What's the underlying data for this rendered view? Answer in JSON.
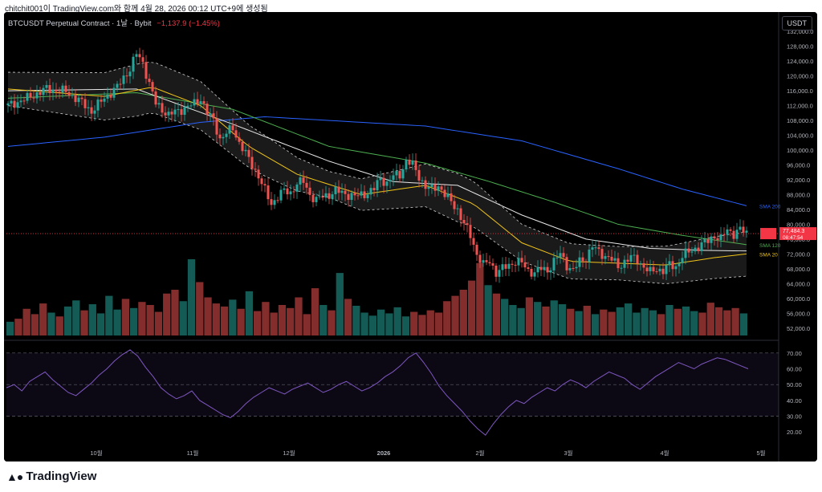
{
  "caption": "chitchit001이 TradingView.com와 함께 4월 28, 2026 00:12 UTC+9에 생성됨",
  "header": {
    "title": "BTCUSDT Perpetual Contract · 1날 · Bybit",
    "change": "−1,137.9 (−1.45%)",
    "currency_button": "USDT"
  },
  "footer": {
    "logo_text": "TradingView",
    "logo_icon": "tradingview-logo-icon"
  },
  "colors": {
    "up": "#26a69a",
    "down": "#ef5350",
    "sma200": "#2962ff",
    "sma120": "#4caf50",
    "sma60": "#e8e8e8",
    "sma20": "#f0c419",
    "rsi": "#7e57c2",
    "price_line": "#f23645"
  },
  "chart_data": [
    {
      "type": "candlestick",
      "x_tick_labels": [
        "10월",
        "11월",
        "12월",
        "2026",
        "2월",
        "3월",
        "4월",
        "5월"
      ],
      "y_tick_labels": [
        "132,000.0",
        "128,000.0",
        "124,000.0",
        "120,000.0",
        "116,000.0",
        "112,000.0",
        "108,000.0",
        "104,000.0",
        "100,000.0",
        "96,000.0",
        "92,000.0",
        "88,000.0",
        "84,000.0",
        "80,000.0",
        "76,000.0",
        "72,000.0",
        "68,000.0",
        "64,000.0",
        "60,000.0",
        "56,000.0",
        "52,000.0"
      ],
      "ylim": [
        50000,
        134000
      ],
      "price_path": [
        [
          0,
          112000
        ],
        [
          6,
          114000
        ],
        [
          12,
          116500
        ],
        [
          18,
          115800
        ],
        [
          22,
          113500
        ],
        [
          26,
          110500
        ],
        [
          30,
          114000
        ],
        [
          34,
          117000
        ],
        [
          38,
          122000
        ],
        [
          40,
          126000
        ],
        [
          42,
          123500
        ],
        [
          44,
          118000
        ],
        [
          46,
          112500
        ],
        [
          50,
          109500
        ],
        [
          54,
          111000
        ],
        [
          58,
          112500
        ],
        [
          60,
          114000
        ],
        [
          62,
          110000
        ],
        [
          64,
          108000
        ],
        [
          66,
          103000
        ],
        [
          68,
          104500
        ],
        [
          70,
          106000
        ],
        [
          72,
          102000
        ],
        [
          74,
          99000
        ],
        [
          76,
          96000
        ],
        [
          78,
          93000
        ],
        [
          80,
          89000
        ],
        [
          82,
          85500
        ],
        [
          84,
          87500
        ],
        [
          86,
          89000
        ],
        [
          88,
          88500
        ],
        [
          90,
          91000
        ],
        [
          92,
          91500
        ],
        [
          94,
          88000
        ],
        [
          96,
          86500
        ],
        [
          98,
          87500
        ],
        [
          100,
          88000
        ],
        [
          102,
          89000
        ],
        [
          104,
          88500
        ],
        [
          106,
          88000
        ],
        [
          108,
          87500
        ],
        [
          110,
          88000
        ],
        [
          112,
          88500
        ],
        [
          114,
          89500
        ],
        [
          116,
          92500
        ],
        [
          118,
          91000
        ],
        [
          120,
          93000
        ],
        [
          122,
          93500
        ],
        [
          124,
          97000
        ],
        [
          126,
          96000
        ],
        [
          128,
          93000
        ],
        [
          130,
          90000
        ],
        [
          132,
          89500
        ],
        [
          134,
          90500
        ],
        [
          136,
          88000
        ],
        [
          138,
          86000
        ],
        [
          140,
          84000
        ],
        [
          142,
          80000
        ],
        [
          144,
          77000
        ],
        [
          146,
          72000
        ],
        [
          148,
          69000
        ],
        [
          150,
          70000
        ],
        [
          152,
          67000
        ],
        [
          154,
          68000
        ],
        [
          156,
          69000
        ],
        [
          158,
          70000
        ],
        [
          160,
          69500
        ],
        [
          162,
          67500
        ],
        [
          164,
          67000
        ],
        [
          166,
          68000
        ],
        [
          168,
          67500
        ],
        [
          170,
          70000
        ],
        [
          172,
          72000
        ],
        [
          174,
          69000
        ],
        [
          176,
          67500
        ],
        [
          178,
          70000
        ],
        [
          180,
          71000
        ],
        [
          182,
          74000
        ],
        [
          184,
          72500
        ],
        [
          186,
          71500
        ],
        [
          188,
          70500
        ],
        [
          190,
          68500
        ],
        [
          192,
          70000
        ],
        [
          194,
          71000
        ],
        [
          196,
          70500
        ],
        [
          198,
          68500
        ],
        [
          200,
          67000
        ],
        [
          202,
          68000
        ],
        [
          204,
          67500
        ],
        [
          206,
          69000
        ],
        [
          208,
          68500
        ],
        [
          210,
          71500
        ],
        [
          212,
          72500
        ],
        [
          214,
          73500
        ],
        [
          216,
          74500
        ],
        [
          218,
          75500
        ],
        [
          220,
          77000
        ],
        [
          222,
          76000
        ],
        [
          224,
          78500
        ],
        [
          226,
          77500
        ],
        [
          228,
          78600
        ],
        [
          230,
          77484
        ]
      ],
      "last_candle_index": 230,
      "overlays": [
        {
          "label": "SMA 200",
          "color_key": "sma200",
          "points": [
            [
              0,
              101000
            ],
            [
              30,
              103500
            ],
            [
              60,
              107500
            ],
            [
              80,
              109000
            ],
            [
              100,
              108000
            ],
            [
              130,
              106500
            ],
            [
              160,
              102500
            ],
            [
              190,
              95000
            ],
            [
              210,
              89500
            ],
            [
              230,
              85000
            ]
          ]
        },
        {
          "label": "SMA 120",
          "color_key": "sma120",
          "points": [
            [
              0,
              114000
            ],
            [
              40,
              115500
            ],
            [
              70,
              111000
            ],
            [
              100,
              101000
            ],
            [
              130,
              96500
            ],
            [
              150,
              91500
            ],
            [
              170,
              86000
            ],
            [
              190,
              80000
            ],
            [
              210,
              77000
            ],
            [
              230,
              74500
            ]
          ]
        },
        {
          "label": "SMA 60",
          "color_key": "sma60",
          "points": [
            [
              0,
              116000
            ],
            [
              40,
              116500
            ],
            [
              70,
              107000
            ],
            [
              100,
              97000
            ],
            [
              120,
              91500
            ],
            [
              140,
              90500
            ],
            [
              160,
              82500
            ],
            [
              180,
              76000
            ],
            [
              200,
              73500
            ],
            [
              215,
              73000
            ],
            [
              230,
              72800
            ]
          ]
        },
        {
          "label": "SMA 20",
          "color_key": "sma20",
          "points": [
            [
              0,
              116500
            ],
            [
              30,
              114500
            ],
            [
              45,
              117000
            ],
            [
              60,
              112000
            ],
            [
              75,
              101000
            ],
            [
              90,
              93500
            ],
            [
              110,
              88000
            ],
            [
              130,
              90500
            ],
            [
              145,
              85500
            ],
            [
              160,
              75000
            ],
            [
              175,
              70000
            ],
            [
              190,
              69500
            ],
            [
              205,
              69000
            ],
            [
              220,
              71000
            ],
            [
              230,
              72000
            ]
          ]
        }
      ],
      "band_half_width": [
        [
          0,
          4500
        ],
        [
          40,
          7000
        ],
        [
          60,
          6500
        ],
        [
          80,
          5500
        ],
        [
          100,
          3500
        ],
        [
          120,
          5000
        ],
        [
          140,
          6500
        ],
        [
          160,
          5000
        ],
        [
          190,
          4500
        ],
        [
          230,
          6000
        ]
      ],
      "price_labels": {
        "last_price": "77,484.3",
        "countdown": "08:47:54",
        "sma120": "SMA 120",
        "sma200": "SMA 200",
        "sma_overlap": "SMA 20"
      }
    },
    {
      "type": "bar",
      "description_key": "volume",
      "ylim": [
        0,
        1
      ],
      "values": [
        0.18,
        0.22,
        0.35,
        0.28,
        0.42,
        0.3,
        0.25,
        0.38,
        0.46,
        0.33,
        0.41,
        0.29,
        0.52,
        0.34,
        0.48,
        0.36,
        0.44,
        0.4,
        0.31,
        0.55,
        0.6,
        0.45,
        1.0,
        0.7,
        0.5,
        0.42,
        0.38,
        0.47,
        0.35,
        0.58,
        0.32,
        0.44,
        0.3,
        0.4,
        0.36,
        0.5,
        0.28,
        0.62,
        0.4,
        0.33,
        0.82,
        0.48,
        0.39,
        0.3,
        0.26,
        0.34,
        0.29,
        0.37,
        0.25,
        0.31,
        0.27,
        0.33,
        0.3,
        0.45,
        0.52,
        0.6,
        0.72,
        0.95,
        0.66,
        0.55,
        0.48,
        0.4,
        0.36,
        0.5,
        0.44,
        0.38,
        0.46,
        0.41,
        0.35,
        0.32,
        0.39,
        0.28,
        0.34,
        0.31,
        0.37,
        0.42,
        0.3,
        0.36,
        0.33,
        0.28,
        0.4,
        0.35,
        0.38,
        0.32,
        0.3,
        0.43,
        0.37,
        0.33,
        0.36,
        0.29
      ]
    },
    {
      "type": "line",
      "description_key": "rsi",
      "y_tick_labels": [
        "70.00",
        "60.00",
        "50.00",
        "40.00",
        "30.00",
        "20.00"
      ],
      "ylim": [
        15,
        75
      ],
      "band": [
        30,
        70
      ],
      "values": [
        48,
        50,
        46,
        52,
        55,
        58,
        53,
        49,
        45,
        43,
        47,
        51,
        56,
        60,
        65,
        69,
        72,
        68,
        61,
        55,
        48,
        44,
        41,
        43,
        46,
        40,
        37,
        34,
        31,
        29,
        33,
        38,
        42,
        45,
        48,
        46,
        44,
        47,
        49,
        51,
        48,
        45,
        47,
        50,
        52,
        49,
        46,
        48,
        51,
        55,
        58,
        62,
        67,
        70,
        64,
        57,
        49,
        43,
        38,
        33,
        27,
        22,
        18,
        25,
        31,
        36,
        40,
        38,
        42,
        45,
        48,
        46,
        50,
        53,
        51,
        48,
        52,
        55,
        58,
        56,
        54,
        50,
        47,
        51,
        55,
        58,
        61,
        64,
        62,
        60,
        63,
        65,
        67,
        66,
        64,
        62,
        60
      ]
    }
  ]
}
